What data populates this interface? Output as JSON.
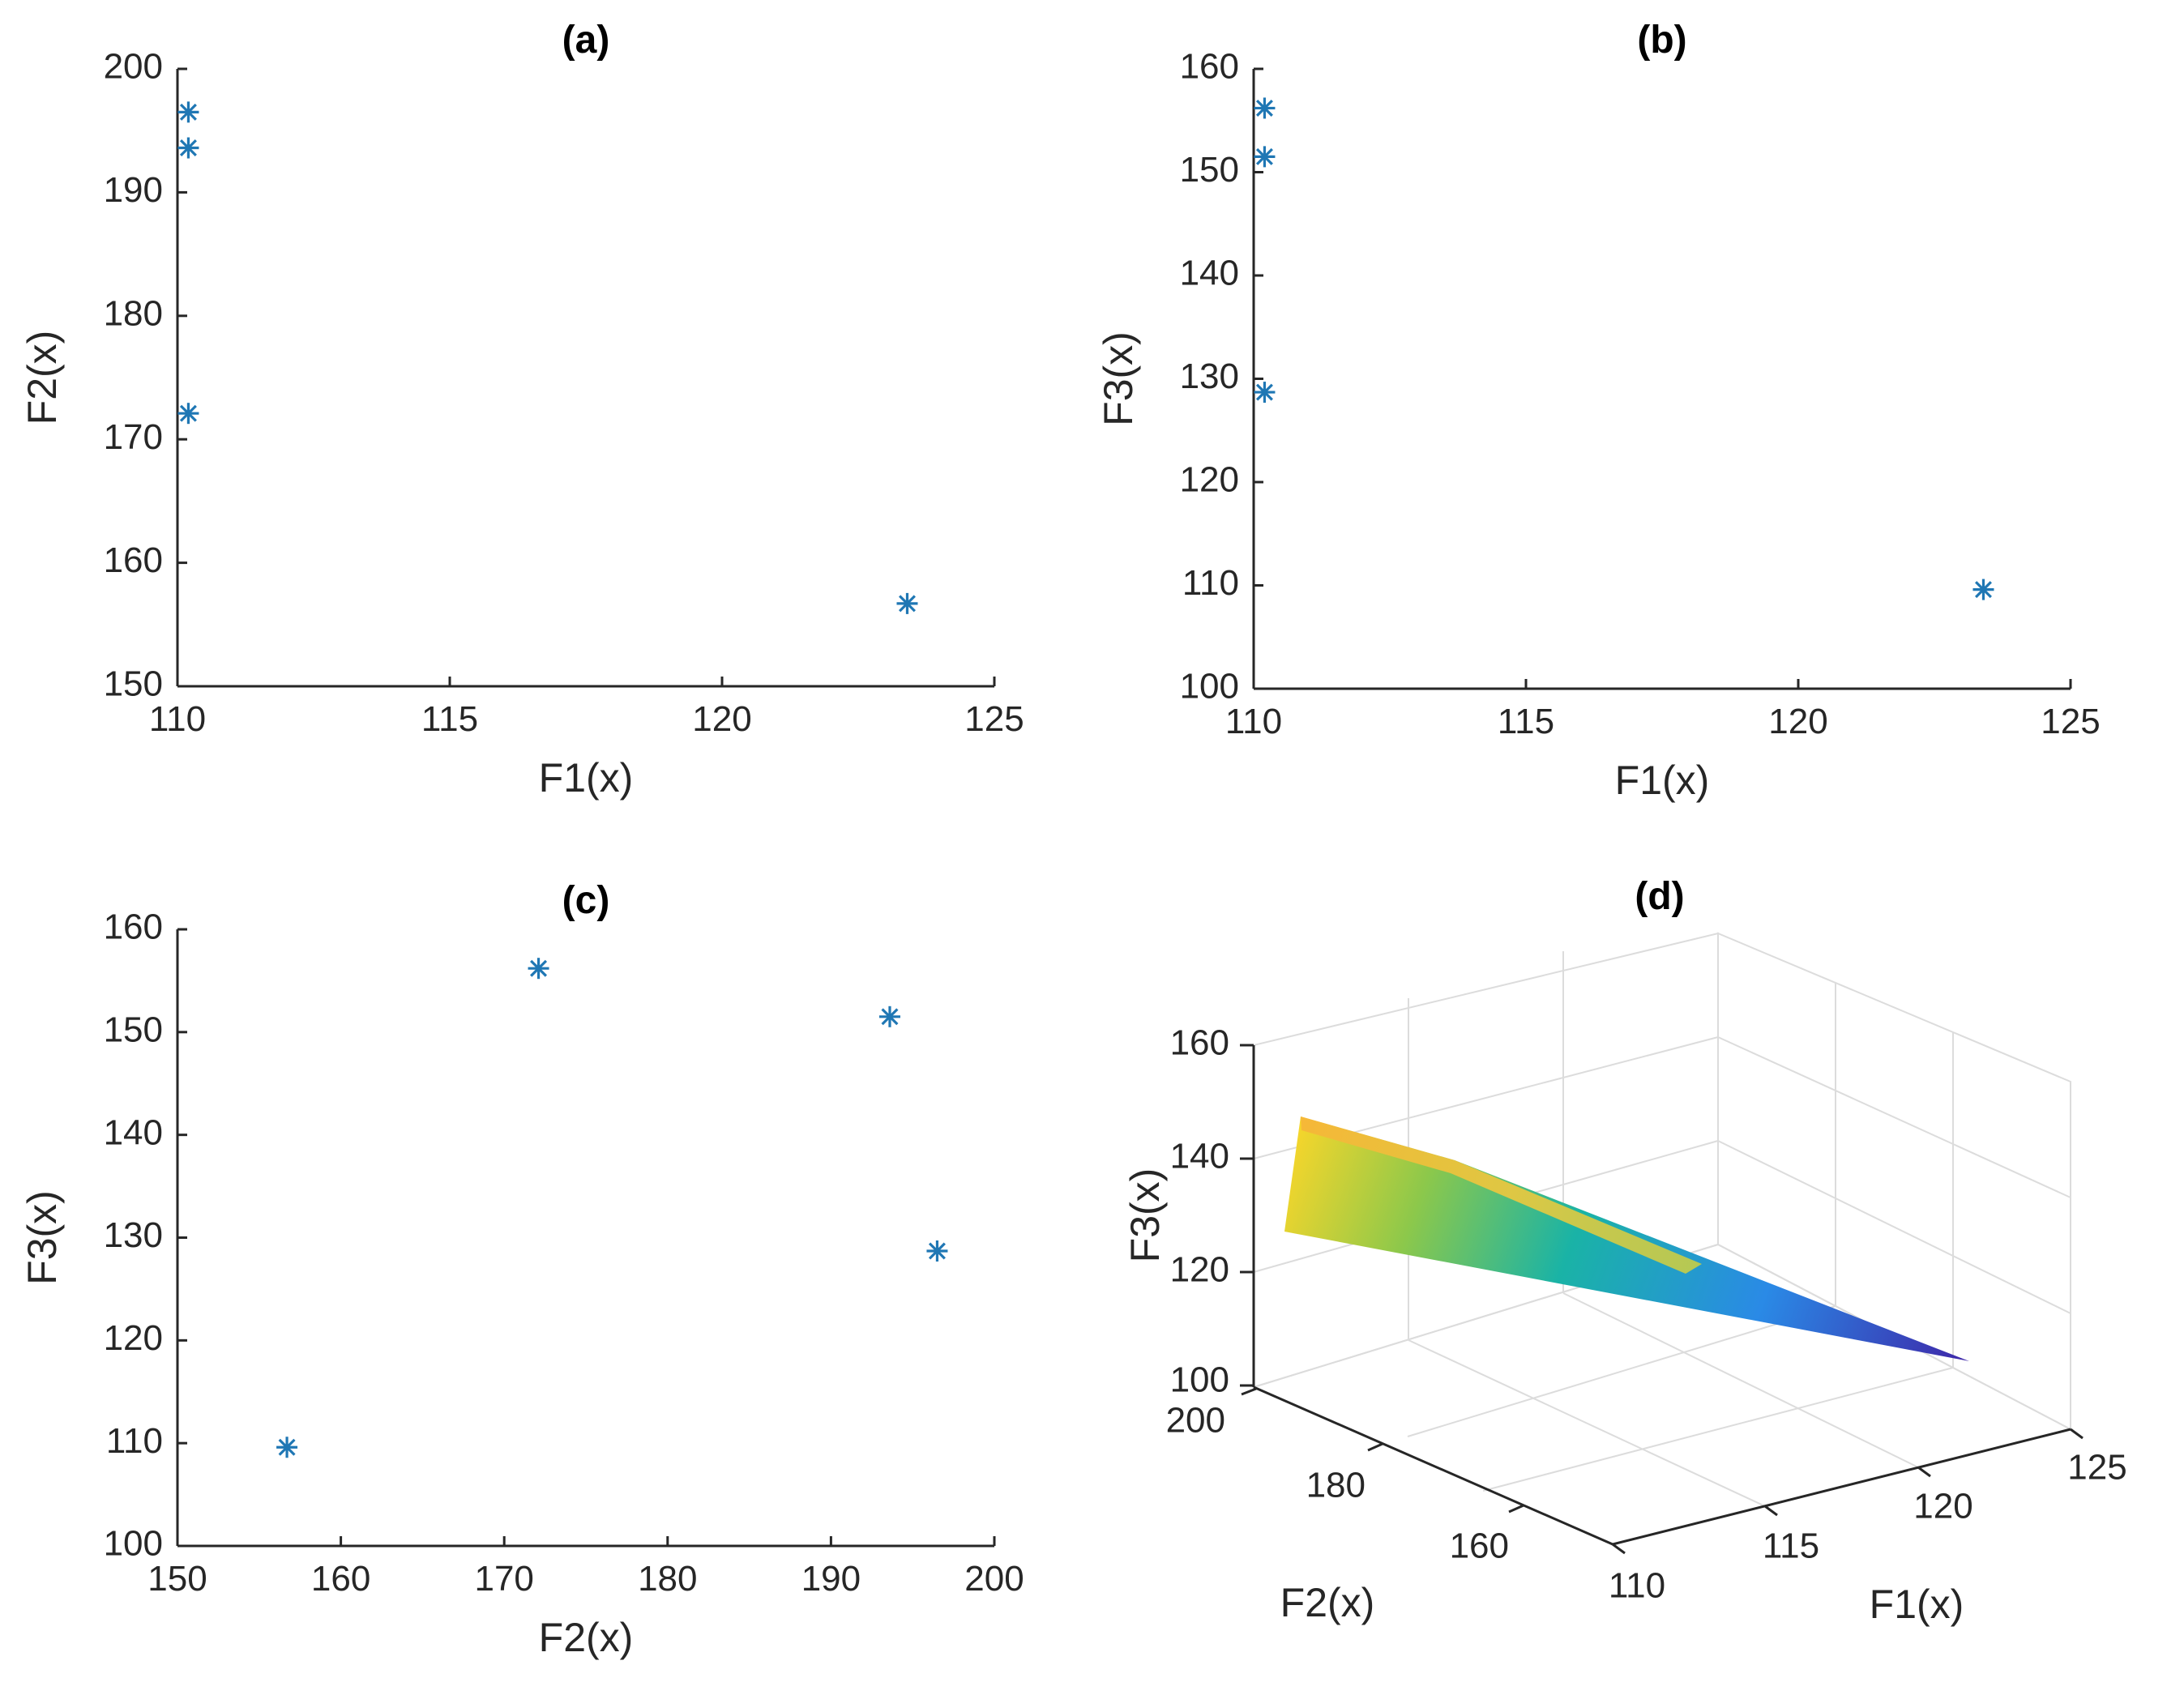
{
  "colors": {
    "marker": "#1f77b4",
    "axis": "#262626"
  },
  "chart_data": [
    {
      "type": "scatter",
      "panel": "(a)",
      "title": "(a)",
      "xlabel": "F1(x)",
      "ylabel": "F2(x)",
      "xlim": [
        110,
        125
      ],
      "ylim": [
        150,
        200
      ],
      "xticks": [
        110,
        115,
        120,
        125
      ],
      "yticks": [
        150,
        160,
        170,
        180,
        190,
        200
      ],
      "marker": "asterisk",
      "x": [
        110.2,
        110.2,
        110.2,
        123.4
      ],
      "y": [
        196.5,
        193.6,
        172.1,
        156.7
      ]
    },
    {
      "type": "scatter",
      "panel": "(b)",
      "title": "(b)",
      "xlabel": "F1(x)",
      "ylabel": "F3(x)",
      "xlim": [
        110,
        125
      ],
      "ylim": [
        100,
        160
      ],
      "xticks": [
        110,
        115,
        120,
        125
      ],
      "yticks": [
        100,
        110,
        120,
        130,
        140,
        150,
        160
      ],
      "marker": "asterisk",
      "x": [
        110.2,
        110.2,
        110.2,
        123.4
      ],
      "y": [
        156.2,
        151.5,
        128.7,
        109.6
      ]
    },
    {
      "type": "scatter",
      "panel": "(c)",
      "title": "(c)",
      "xlabel": "F2(x)",
      "ylabel": "F3(x)",
      "xlim": [
        150,
        200
      ],
      "ylim": [
        100,
        160
      ],
      "xticks": [
        150,
        160,
        170,
        180,
        190,
        200
      ],
      "yticks": [
        100,
        110,
        120,
        130,
        140,
        150,
        160
      ],
      "marker": "asterisk",
      "x": [
        172.1,
        193.6,
        196.5,
        156.7
      ],
      "y": [
        156.2,
        151.5,
        128.7,
        109.6
      ]
    },
    {
      "type": "surface",
      "panel": "(d)",
      "title": "(d)",
      "xlabel": "F1(x)",
      "ylabel": "F2(x)",
      "zlabel": "F3(x)",
      "xticks": [
        110,
        115,
        120,
        125
      ],
      "yticks": [
        160,
        180,
        200
      ],
      "zticks": [
        100,
        120,
        140,
        160
      ],
      "colormap": "parula",
      "surface_points": [
        {
          "x": 110.2,
          "y": 196.5,
          "z": 128.7
        },
        {
          "x": 110.2,
          "y": 193.6,
          "z": 151.5
        },
        {
          "x": 110.2,
          "y": 172.1,
          "z": 156.2
        },
        {
          "x": 123.4,
          "y": 156.7,
          "z": 109.6
        }
      ]
    }
  ]
}
